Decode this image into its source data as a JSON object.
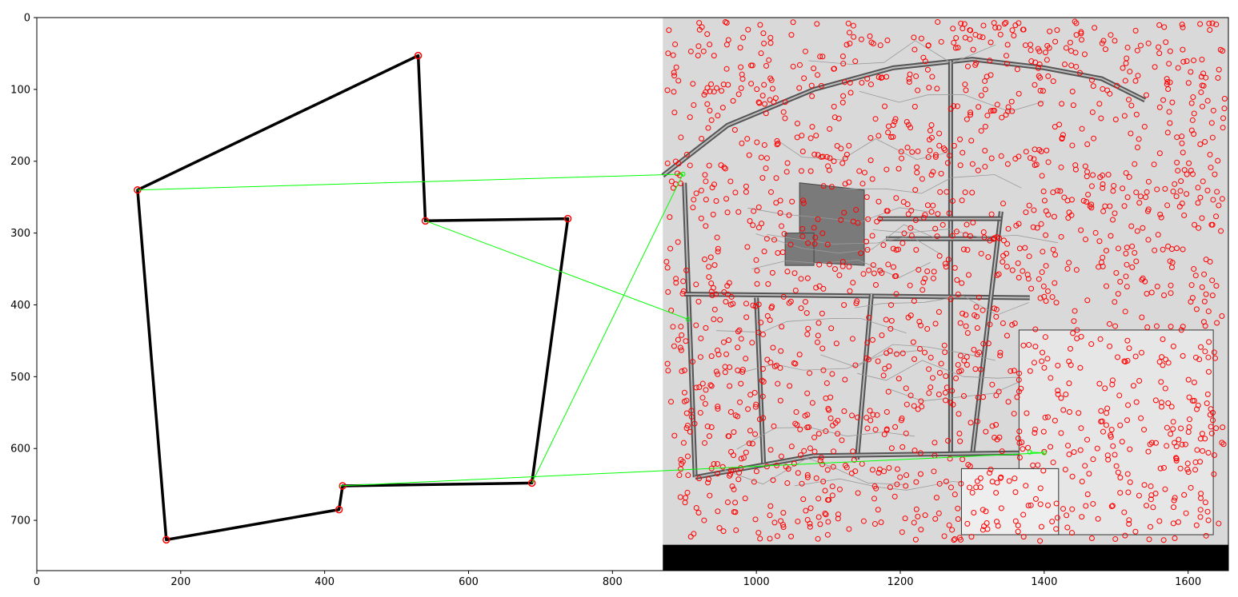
{
  "chart_data": {
    "type": "scatter",
    "title": "",
    "xlabel": "",
    "ylabel": "",
    "xlim": [
      0,
      1656
    ],
    "ylim": [
      770,
      0
    ],
    "y_inverted": true,
    "x_ticks": [
      0,
      200,
      400,
      600,
      800,
      1000,
      1200,
      1400,
      1600
    ],
    "y_ticks": [
      0,
      100,
      200,
      300,
      400,
      500,
      600,
      700
    ],
    "grid": false,
    "legend": "none",
    "colors": {
      "outline": "#000000",
      "keypoint": "#ff0000",
      "match": "#00ff00",
      "map_background": "#d9d9d9",
      "road": "#555555",
      "padding": "#000000"
    },
    "series": [
      {
        "kind": "left-outline-polygon",
        "points": [
          [
            530,
            53
          ],
          [
            540,
            283
          ],
          [
            738,
            280
          ],
          [
            688,
            648
          ],
          [
            425,
            652
          ],
          [
            420,
            685
          ],
          [
            180,
            727
          ],
          [
            140,
            240
          ]
        ]
      },
      {
        "kind": "left-keypoints",
        "points": [
          [
            530,
            53
          ],
          [
            540,
            283
          ],
          [
            738,
            280
          ],
          [
            688,
            648
          ],
          [
            425,
            652
          ],
          [
            420,
            685
          ],
          [
            180,
            727
          ],
          [
            140,
            240
          ]
        ]
      },
      {
        "kind": "match-lines",
        "pairs": [
          [
            [
              140,
              240
            ],
            [
              898,
              218
            ]
          ],
          [
            [
              540,
              283
            ],
            [
              905,
              420
            ]
          ],
          [
            [
              688,
              648
            ],
            [
              898,
              218
            ]
          ],
          [
            [
              420,
              652
            ],
            [
              1400,
              606
            ]
          ],
          [
            [
              1400,
              606
            ],
            [
              1380,
              605
            ]
          ]
        ]
      }
    ],
    "right_panel": {
      "x_start": 870,
      "x_end": 1656,
      "y_start": 0,
      "map_y_end": 734,
      "roads": [
        [
          [
            870,
            220
          ],
          [
            960,
            150
          ],
          [
            1080,
            100
          ],
          [
            1190,
            70
          ],
          [
            1300,
            58
          ],
          [
            1400,
            70
          ],
          [
            1480,
            85
          ],
          [
            1540,
            115
          ]
        ],
        [
          [
            1270,
            60
          ],
          [
            1270,
            610
          ]
        ],
        [
          [
            900,
            230
          ],
          [
            915,
            640
          ]
        ],
        [
          [
            900,
            385
          ],
          [
            1380,
            390
          ]
        ],
        [
          [
            1160,
            385
          ],
          [
            1140,
            615
          ]
        ],
        [
          [
            1340,
            270
          ],
          [
            1300,
            610
          ]
        ],
        [
          [
            1170,
            280
          ],
          [
            1340,
            280
          ]
        ],
        [
          [
            1180,
            308
          ],
          [
            1330,
            308
          ]
        ],
        [
          [
            1080,
            610
          ],
          [
            1380,
            606
          ]
        ],
        [
          [
            915,
            640
          ],
          [
            1080,
            610
          ]
        ],
        [
          [
            1000,
            390
          ],
          [
            1010,
            620
          ]
        ]
      ],
      "building_blocks": [
        [
          [
            1060,
            230
          ],
          [
            1150,
            240
          ],
          [
            1150,
            345
          ],
          [
            1060,
            340
          ]
        ],
        [
          [
            1040,
            300
          ],
          [
            1080,
            300
          ],
          [
            1080,
            345
          ],
          [
            1040,
            345
          ]
        ]
      ]
    }
  }
}
